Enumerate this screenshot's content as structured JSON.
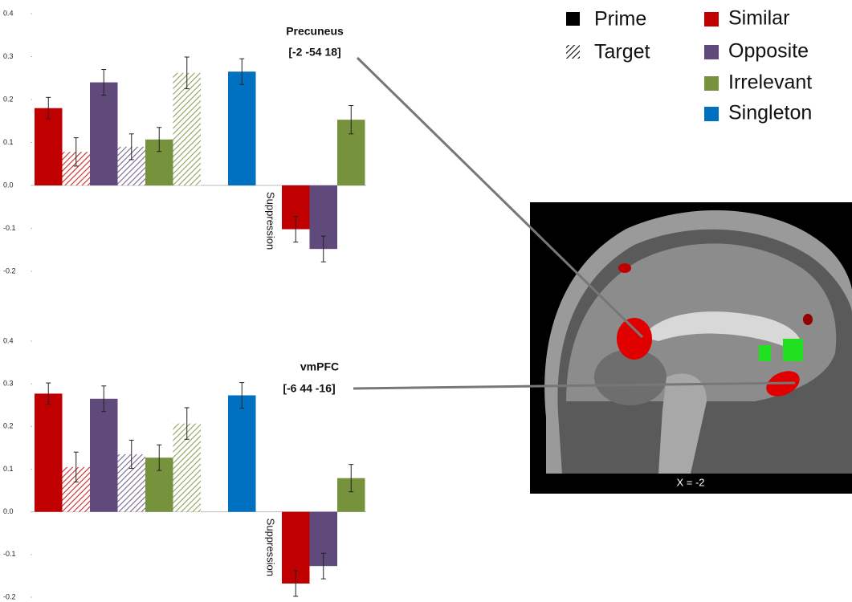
{
  "legend": {
    "patterns": [
      "Prime",
      "Target"
    ],
    "groups": [
      {
        "name": "Similar",
        "color": "#c00000"
      },
      {
        "name": "Opposite",
        "color": "#5f4a7b"
      },
      {
        "name": "Irrelevant",
        "color": "#76923c"
      },
      {
        "name": "Singleton",
        "color": "#0070c0"
      }
    ]
  },
  "chart_data": [
    {
      "type": "bar",
      "annotation": [
        "Precuneus",
        "[-2 -54 18]"
      ],
      "suppression_label": "Suppression",
      "ylim": [
        -0.2,
        0.4
      ],
      "yticks": [
        -0.2,
        -0.1,
        {
          "value": 0,
          "label": "0.0"
        },
        0.1,
        0.2,
        0.3,
        0.4
      ],
      "series": [
        {
          "values": [
            0.18,
            0.078,
            -0.102
          ],
          "errors": [
            0.025,
            0.033,
            0.03
          ]
        },
        {
          "values": [
            0.24,
            0.09,
            -0.148
          ],
          "errors": [
            0.03,
            0.03,
            0.03
          ]
        },
        {
          "values": [
            0.107,
            0.262,
            0.153
          ],
          "errors": [
            0.028,
            0.037,
            0.033
          ]
        },
        {
          "values": [
            0.265,
            null,
            null
          ],
          "errors": [
            0.03,
            null,
            null
          ]
        }
      ]
    },
    {
      "type": "bar",
      "annotation": [
        "vmPFC",
        "[-6 44 -16]"
      ],
      "suppression_label": "Suppression",
      "ylim": [
        -0.2,
        0.4
      ],
      "yticks": [
        -0.2,
        -0.1,
        {
          "value": 0,
          "label": "0.0"
        },
        0.1,
        0.2,
        0.3,
        0.4
      ],
      "series": [
        {
          "values": [
            0.277,
            0.105,
            -0.168
          ],
          "errors": [
            0.025,
            0.035,
            0.03
          ]
        },
        {
          "values": [
            0.265,
            0.135,
            -0.127
          ],
          "errors": [
            0.03,
            0.033,
            0.03
          ]
        },
        {
          "values": [
            0.127,
            0.207,
            0.079
          ],
          "errors": [
            0.03,
            0.037,
            0.032
          ]
        },
        {
          "values": [
            0.273,
            null,
            null
          ],
          "errors": [
            0.03,
            null,
            null
          ]
        }
      ]
    }
  ],
  "image": {
    "caption": "X = -2"
  }
}
